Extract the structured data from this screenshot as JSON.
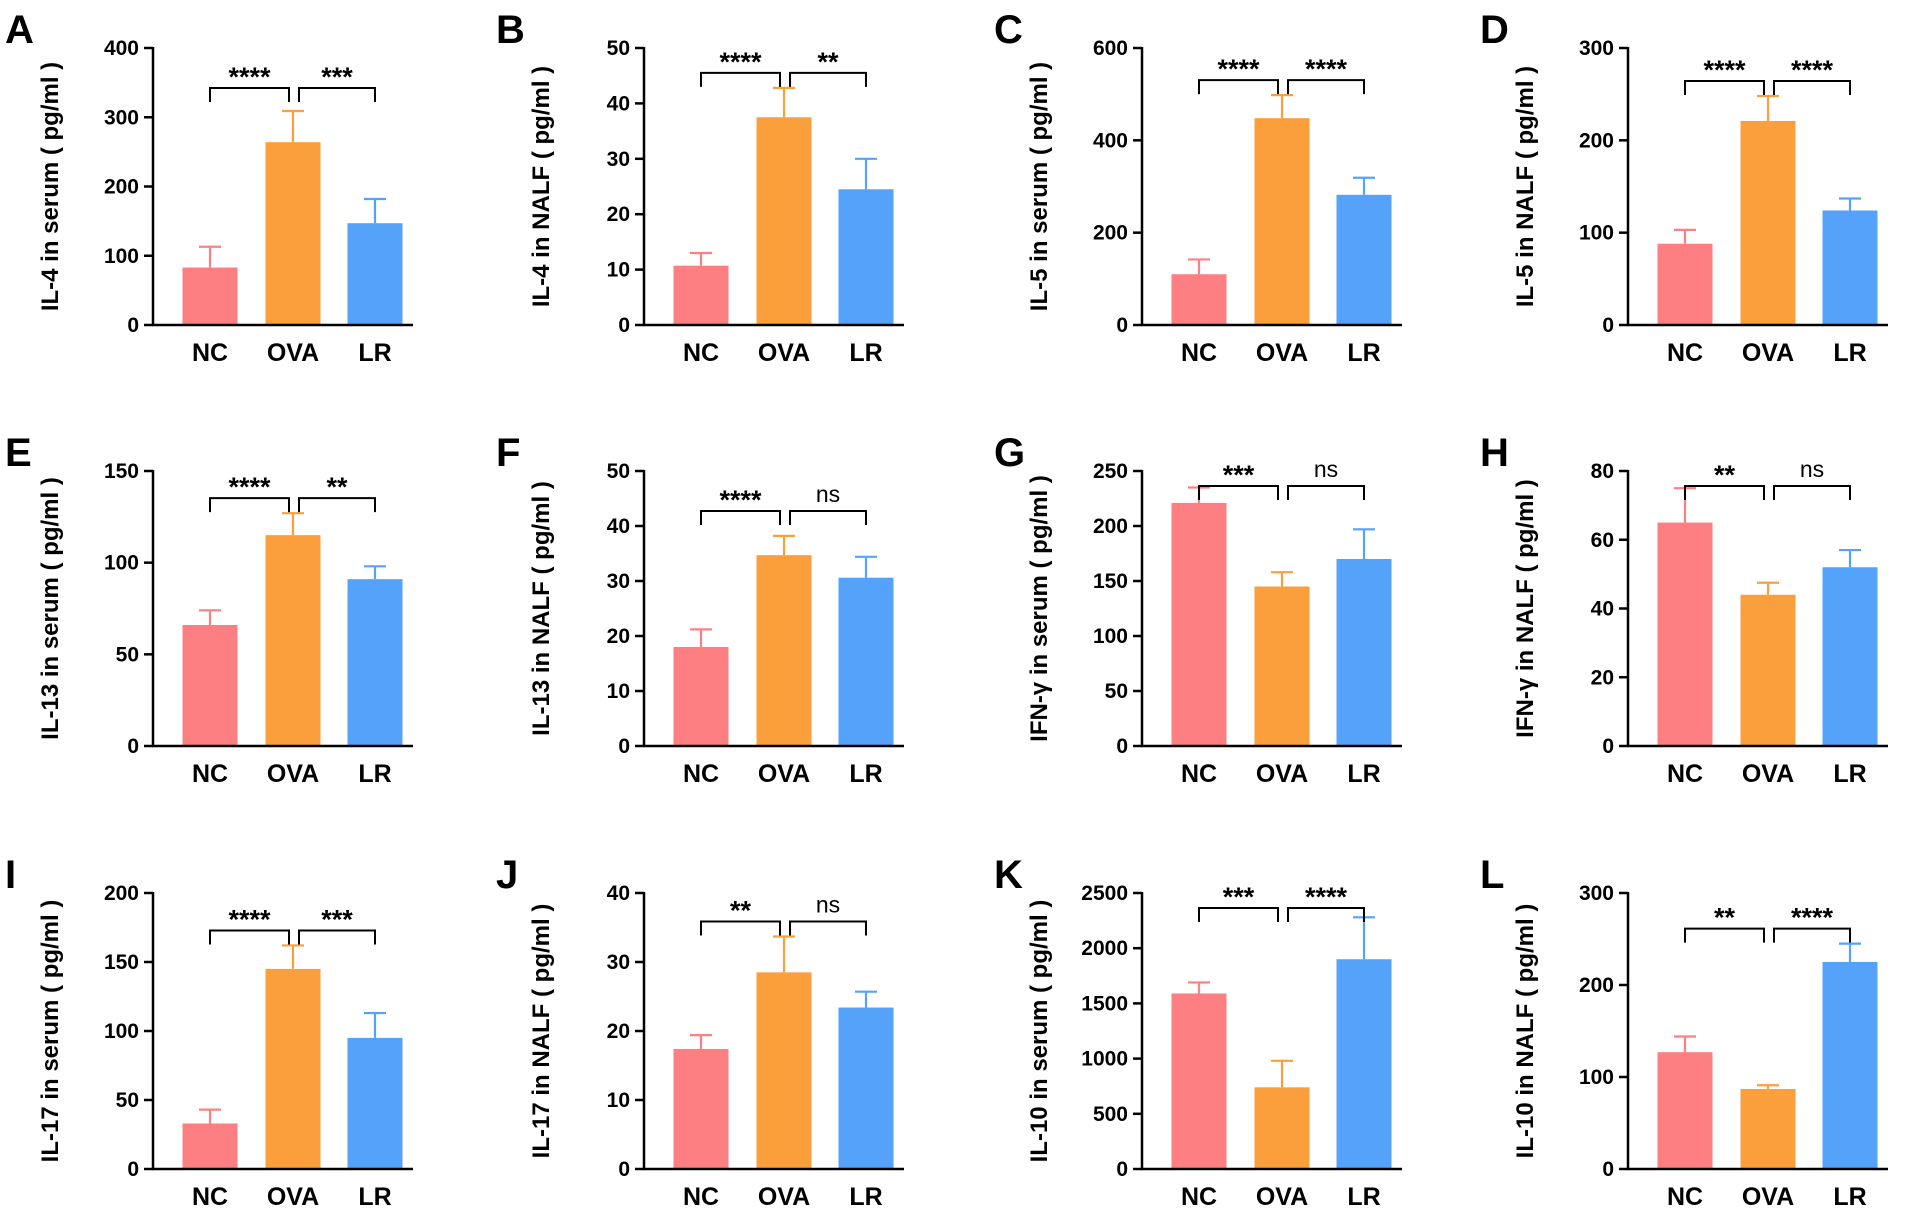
{
  "colors": {
    "NC": "#FD7F82",
    "OVA": "#FB9F3C",
    "LR": "#55A2FB"
  },
  "chart_data": [
    {
      "type": "bar",
      "panel": "A",
      "categories": [
        "NC",
        "OVA",
        "LR"
      ],
      "values": [
        83,
        264,
        147
      ],
      "errors": [
        30,
        45,
        35
      ],
      "ylabel": "IL-4 in serum ( pg/ml )",
      "ylim": [
        0,
        400
      ],
      "yticks": [
        0,
        100,
        200,
        300,
        400
      ],
      "significance": [
        "****",
        "***"
      ]
    },
    {
      "type": "bar",
      "panel": "B",
      "categories": [
        "NC",
        "OVA",
        "LR"
      ],
      "values": [
        10.7,
        37.5,
        24.5
      ],
      "errors": [
        2.3,
        5.3,
        5.5
      ],
      "ylabel": "IL-4 in NALF ( pg/ml )",
      "ylim": [
        0,
        50
      ],
      "yticks": [
        0,
        10,
        20,
        30,
        40,
        50
      ],
      "significance": [
        "****",
        "**"
      ]
    },
    {
      "type": "bar",
      "panel": "C",
      "categories": [
        "NC",
        "OVA",
        "LR"
      ],
      "values": [
        110,
        448,
        282
      ],
      "errors": [
        32,
        50,
        37
      ],
      "ylabel": "IL-5 in serum ( pg/ml )",
      "ylim": [
        0,
        600
      ],
      "yticks": [
        0,
        200,
        400,
        600
      ],
      "significance": [
        "****",
        "****"
      ]
    },
    {
      "type": "bar",
      "panel": "D",
      "categories": [
        "NC",
        "OVA",
        "LR"
      ],
      "values": [
        88,
        221,
        124
      ],
      "errors": [
        15,
        27,
        13
      ],
      "ylabel": "IL-5 in NALF ( pg/ml )",
      "ylim": [
        0,
        300
      ],
      "yticks": [
        0,
        100,
        200,
        300
      ],
      "significance": [
        "****",
        "****"
      ]
    },
    {
      "type": "bar",
      "panel": "E",
      "categories": [
        "NC",
        "OVA",
        "LR"
      ],
      "values": [
        66,
        115,
        91
      ],
      "errors": [
        8,
        12,
        7
      ],
      "ylabel": "IL-13 in serum ( pg/ml )",
      "ylim": [
        0,
        150
      ],
      "yticks": [
        0,
        50,
        100,
        150
      ],
      "significance": [
        "****",
        "**"
      ]
    },
    {
      "type": "bar",
      "panel": "F",
      "categories": [
        "NC",
        "OVA",
        "LR"
      ],
      "values": [
        18,
        34.7,
        30.6
      ],
      "errors": [
        3.2,
        3.5,
        3.8
      ],
      "ylabel": "IL-13 in NALF ( pg/ml )",
      "ylim": [
        0,
        50
      ],
      "yticks": [
        0,
        10,
        20,
        30,
        40,
        50
      ],
      "significance": [
        "****",
        "ns"
      ]
    },
    {
      "type": "bar",
      "panel": "G",
      "categories": [
        "NC",
        "OVA",
        "LR"
      ],
      "values": [
        221,
        145,
        170
      ],
      "errors": [
        14,
        13,
        27
      ],
      "ylabel": "IFN-γ in serum ( pg/ml )",
      "ylim": [
        0,
        250
      ],
      "yticks": [
        0,
        50,
        100,
        150,
        200,
        250
      ],
      "significance": [
        "***",
        "ns"
      ]
    },
    {
      "type": "bar",
      "panel": "H",
      "categories": [
        "NC",
        "OVA",
        "LR"
      ],
      "values": [
        65,
        44,
        52
      ],
      "errors": [
        10,
        3.5,
        5
      ],
      "ylabel": "IFN-γ in NALF ( pg/ml )",
      "ylim": [
        0,
        80
      ],
      "yticks": [
        0,
        20,
        40,
        60,
        80
      ],
      "significance": [
        "**",
        "ns"
      ]
    },
    {
      "type": "bar",
      "panel": "I",
      "categories": [
        "NC",
        "OVA",
        "LR"
      ],
      "values": [
        33,
        145,
        95
      ],
      "errors": [
        10,
        17,
        18
      ],
      "ylabel": "IL-17 in serum ( pg/ml )",
      "ylim": [
        0,
        200
      ],
      "yticks": [
        0,
        50,
        100,
        150,
        200
      ],
      "significance": [
        "****",
        "***"
      ]
    },
    {
      "type": "bar",
      "panel": "J",
      "categories": [
        "NC",
        "OVA",
        "LR"
      ],
      "values": [
        17.4,
        28.5,
        23.4
      ],
      "errors": [
        2.0,
        5.2,
        2.3
      ],
      "ylabel": "IL-17 in NALF ( pg/ml )",
      "ylim": [
        0,
        40
      ],
      "yticks": [
        0,
        10,
        20,
        30,
        40
      ],
      "significance": [
        "**",
        "ns"
      ]
    },
    {
      "type": "bar",
      "panel": "K",
      "categories": [
        "NC",
        "OVA",
        "LR"
      ],
      "values": [
        1590,
        740,
        1900
      ],
      "errors": [
        100,
        240,
        380
      ],
      "ylabel": "IL-10 in serum ( pg/ml )",
      "ylim": [
        0,
        2500
      ],
      "yticks": [
        0,
        500,
        1000,
        1500,
        2000,
        2500
      ],
      "significance": [
        "***",
        "****"
      ]
    },
    {
      "type": "bar",
      "panel": "L",
      "categories": [
        "NC",
        "OVA",
        "LR"
      ],
      "values": [
        127,
        87,
        225
      ],
      "errors": [
        17,
        4,
        20
      ],
      "ylabel": "IL-10 in NALF ( pg/ml )",
      "ylim": [
        0,
        300
      ],
      "yticks": [
        0,
        100,
        200,
        300
      ],
      "significance": [
        "**",
        "****"
      ]
    }
  ]
}
